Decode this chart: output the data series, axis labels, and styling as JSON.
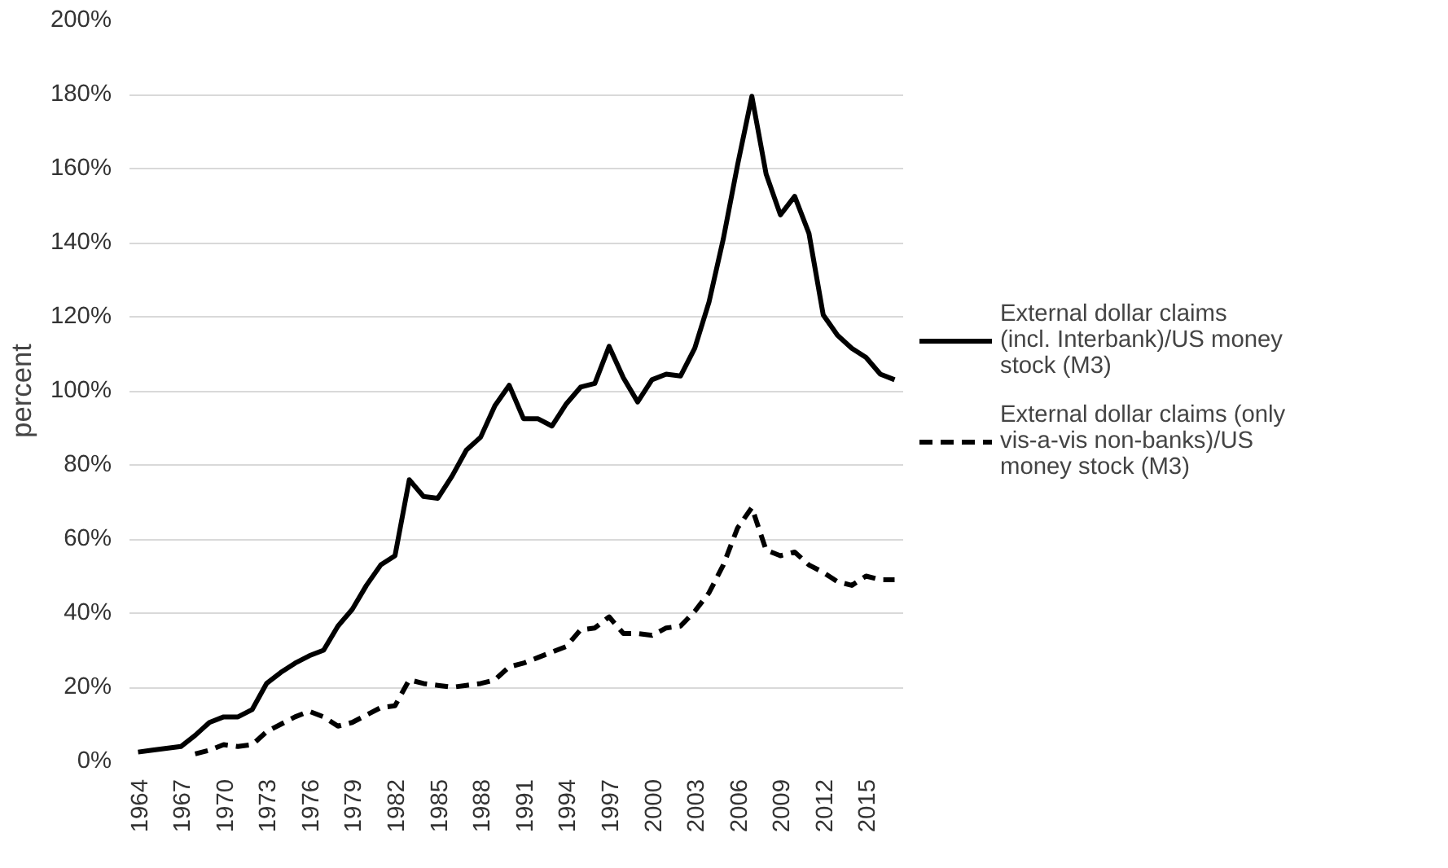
{
  "chart_data": {
    "type": "line",
    "ylabel": "percent",
    "categories": [
      "1964",
      null,
      null,
      "1967",
      null,
      null,
      "1970",
      null,
      null,
      "1973",
      null,
      null,
      "1976",
      null,
      null,
      "1979",
      null,
      null,
      "1982",
      null,
      null,
      "1985",
      null,
      null,
      "1988",
      null,
      null,
      "1991",
      null,
      null,
      "1994",
      null,
      null,
      "1997",
      null,
      null,
      "2000",
      null,
      null,
      "2003",
      null,
      null,
      "2006",
      null,
      null,
      "2009",
      null,
      null,
      "2012",
      null,
      null,
      "2015",
      null,
      null
    ],
    "series": [
      {
        "name": "External dollar claims (incl. Interbank)/US money stock (M3)",
        "color": "#000000",
        "line_style": "solid",
        "values": [
          2.5,
          3,
          3.5,
          4,
          7,
          10.5,
          12,
          12,
          14,
          21,
          24,
          26.5,
          28.5,
          30,
          36.5,
          41,
          47.5,
          53,
          55.5,
          76,
          71.5,
          71,
          77,
          84,
          87.5,
          96,
          101.5,
          92.5,
          92.5,
          90.5,
          96.5,
          101,
          102,
          112,
          103.5,
          97,
          103,
          104.5,
          104,
          111.5,
          124,
          141,
          161,
          179.5,
          158.5,
          147.5,
          152.5,
          142.5,
          120.5,
          115,
          111.5,
          109,
          104.5,
          103
        ]
      },
      {
        "name": "External dollar claims (only vis-a-vis non-banks)/US money stock (M3)",
        "color": "#000000",
        "line_style": "dashed",
        "values": [
          null,
          null,
          null,
          null,
          2,
          3,
          4.5,
          4,
          4.5,
          8,
          10,
          12,
          13.5,
          12,
          9.5,
          10.5,
          12.5,
          14.5,
          15,
          22,
          21,
          20.5,
          20,
          20.5,
          21,
          22,
          25.5,
          26.5,
          28,
          29.5,
          31,
          35.5,
          36,
          39,
          34.5,
          34.5,
          34,
          36,
          36.5,
          40.5,
          45.5,
          53,
          63,
          68.5,
          57,
          55.5,
          56.5,
          53,
          51,
          48.5,
          47.5,
          50,
          49,
          49
        ]
      }
    ],
    "ylim": [
      0,
      200
    ],
    "yticks": [
      {
        "value": 0,
        "label": "0%"
      },
      {
        "value": 20,
        "label": "20%"
      },
      {
        "value": 40,
        "label": "40%"
      },
      {
        "value": 60,
        "label": "60%"
      },
      {
        "value": 80,
        "label": "80%"
      },
      {
        "value": 100,
        "label": "100%"
      },
      {
        "value": 120,
        "label": "120%"
      },
      {
        "value": 140,
        "label": "140%"
      },
      {
        "value": 160,
        "label": "160%"
      },
      {
        "value": 180,
        "label": "180%"
      },
      {
        "value": 200,
        "label": "200%"
      }
    ],
    "grid": "y",
    "legend": "right",
    "marker": "none"
  }
}
